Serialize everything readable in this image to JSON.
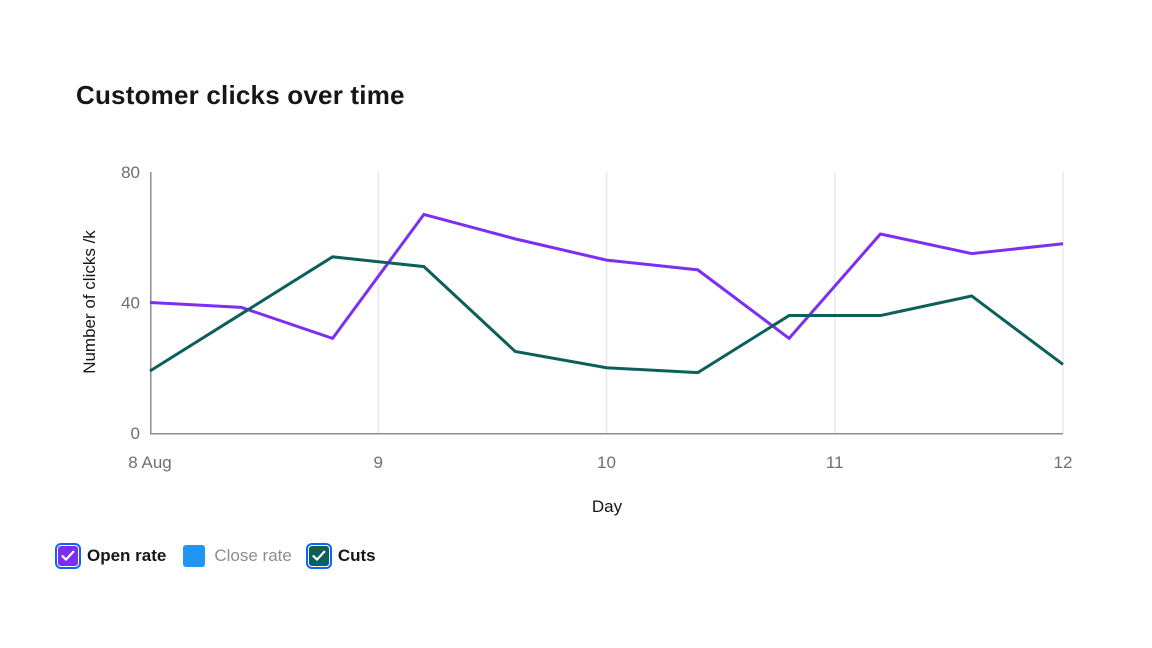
{
  "header": {
    "title": "Customer clicks over time"
  },
  "chart_data": {
    "type": "line",
    "title": "Customer clicks over time",
    "xlabel": "Day",
    "ylabel": "Number of clicks /k",
    "xlim": [
      8,
      12
    ],
    "ylim": [
      0,
      80
    ],
    "grid": "vertical",
    "legend_position": "bottom-left",
    "x": [
      8,
      8.4,
      8.8,
      9.2,
      9.6,
      10,
      10.4,
      10.8,
      11.2,
      11.6,
      12
    ],
    "xticks": [
      {
        "label": "8 Aug",
        "value": 8
      },
      {
        "label": "9",
        "value": 9
      },
      {
        "label": "10",
        "value": 10
      },
      {
        "label": "11",
        "value": 11
      },
      {
        "label": "12",
        "value": 12
      }
    ],
    "yticks": [
      {
        "label": "0",
        "value": 0
      },
      {
        "label": "40",
        "value": 40
      },
      {
        "label": "80",
        "value": 80
      }
    ],
    "series": [
      {
        "name": "Open rate",
        "color": "#7c2ff2",
        "values": [
          40,
          38.5,
          29,
          67,
          59.5,
          53,
          50,
          29,
          61,
          55,
          58
        ]
      },
      {
        "name": "Cuts",
        "color": "#0d5f5c",
        "values": [
          19,
          36.5,
          54,
          51,
          25,
          20,
          18.5,
          36,
          36,
          42,
          21
        ]
      }
    ]
  },
  "legend": {
    "items": [
      {
        "label": "Open rate",
        "color": "#7c2ff2",
        "checked": true
      },
      {
        "label": "Close rate",
        "color": "#2095f3",
        "checked": false
      },
      {
        "label": "Cuts",
        "color": "#0d5f5c",
        "checked": true
      }
    ]
  },
  "colors": {
    "title_text": "#161616",
    "axis_title_text": "#161616",
    "tick_text": "#6f6f6f",
    "axis_line": "#8d8d8d",
    "gridline": "#e8e8e8",
    "checkbox_ring": "#0f62fe",
    "checkmark": "#ffffff",
    "unchecked_label": "#8d8d8d"
  }
}
